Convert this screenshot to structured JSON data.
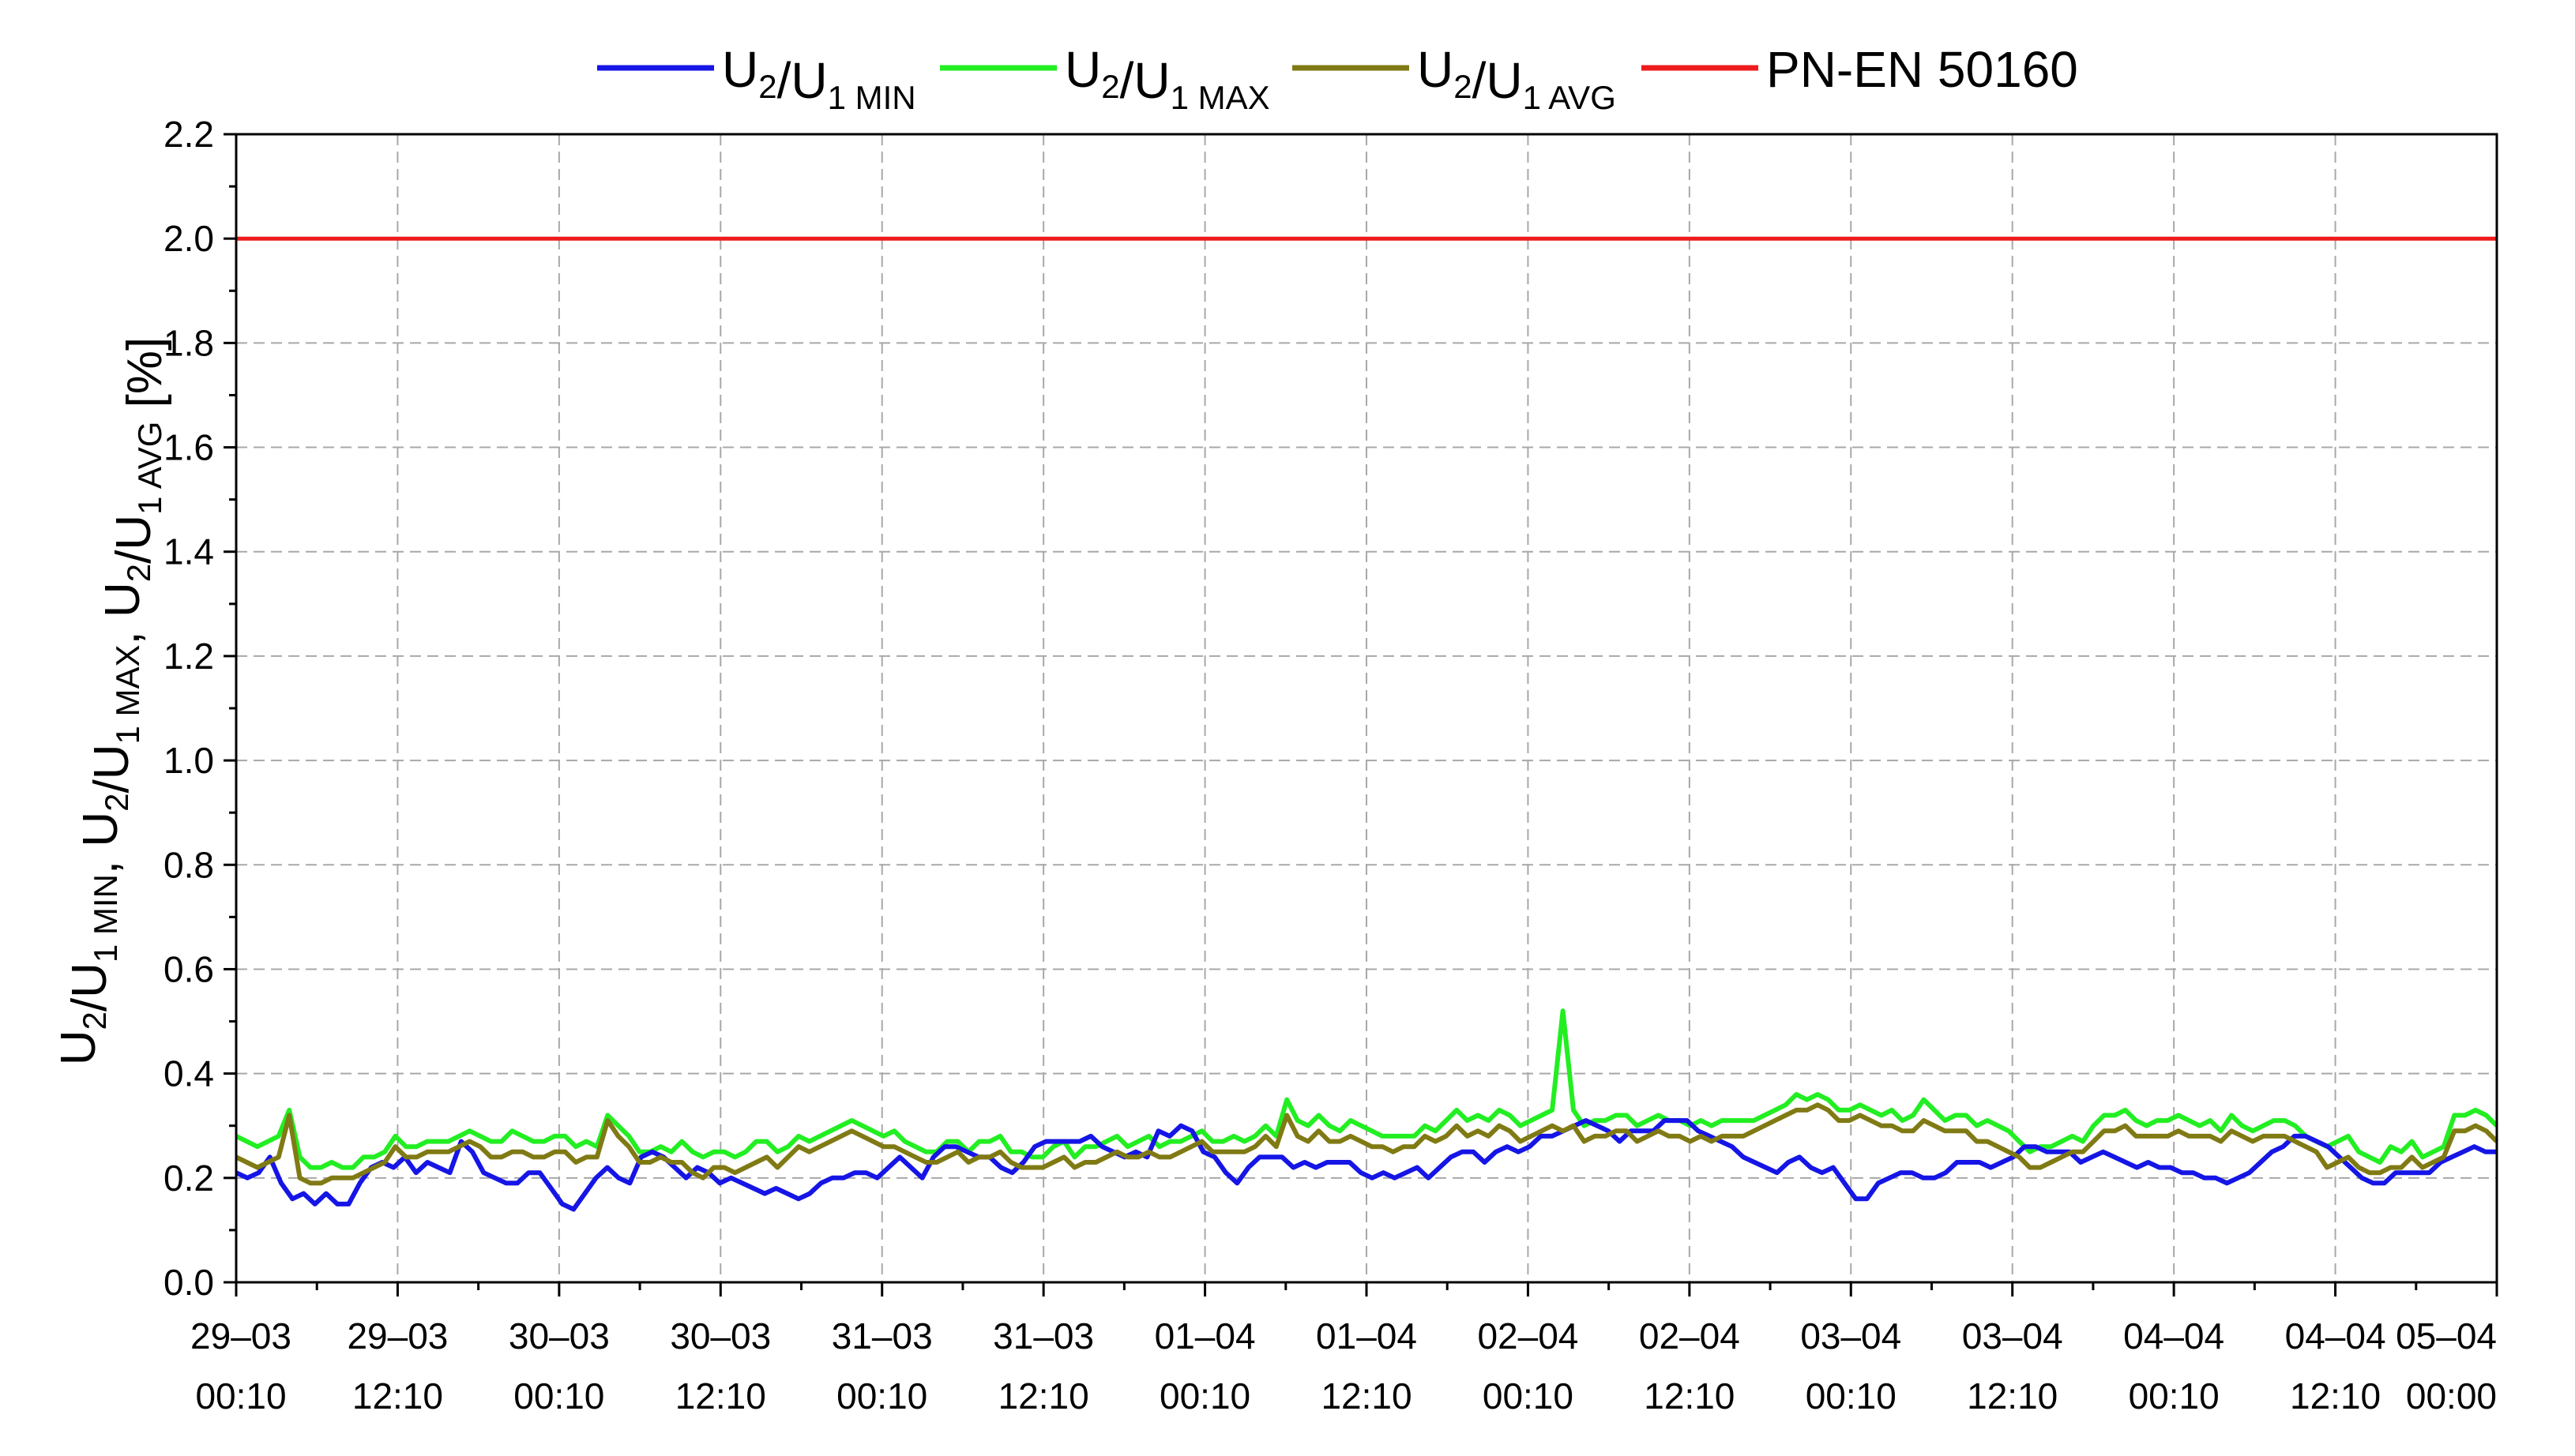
{
  "chart_data": {
    "type": "line",
    "title": "",
    "ylabel": {
      "parts": [
        {
          "t": "U"
        },
        {
          "t": "2",
          "sub": true
        },
        {
          "t": "/U"
        },
        {
          "t": "1 MIN",
          "sub": true
        },
        {
          "t": ", U"
        },
        {
          "t": "2",
          "sub": true
        },
        {
          "t": "/U"
        },
        {
          "t": "1 MAX",
          "sub": true
        },
        {
          "t": ", U"
        },
        {
          "t": "2",
          "sub": true
        },
        {
          "t": "/U"
        },
        {
          "t": "1 AVG",
          "sub": true
        },
        {
          "t": " [%]"
        }
      ]
    },
    "ylim": [
      0,
      2.2
    ],
    "yticks": [
      "0.0",
      "0.2",
      "0.4",
      "0.6",
      "0.8",
      "1.0",
      "1.2",
      "1.4",
      "1.6",
      "1.8",
      "2.0",
      "2.2"
    ],
    "xticks": [
      {
        "date": "29–03",
        "time": "00:10"
      },
      {
        "date": "29–03",
        "time": "12:10"
      },
      {
        "date": "30–03",
        "time": "00:10"
      },
      {
        "date": "30–03",
        "time": "12:10"
      },
      {
        "date": "31–03",
        "time": "00:10"
      },
      {
        "date": "31–03",
        "time": "12:10"
      },
      {
        "date": "01–04",
        "time": "00:10"
      },
      {
        "date": "01–04",
        "time": "12:10"
      },
      {
        "date": "02–04",
        "time": "00:10"
      },
      {
        "date": "02–04",
        "time": "12:10"
      },
      {
        "date": "03–04",
        "time": "00:10"
      },
      {
        "date": "03–04",
        "time": "12:10"
      },
      {
        "date": "04–04",
        "time": "00:10"
      },
      {
        "date": "04–04",
        "time": "12:10"
      },
      {
        "date": "05–04",
        "time": "00:00"
      }
    ],
    "grid": true,
    "legend": "top",
    "series": [
      {
        "name": "U2/U1 MIN",
        "legend_parts": [
          {
            "t": "U"
          },
          {
            "t": "2",
            "sub": true
          },
          {
            "t": "/U"
          },
          {
            "t": "1 MIN",
            "sub": true
          }
        ],
        "color": "#1515e6",
        "values": [
          0.21,
          0.2,
          0.21,
          0.24,
          0.19,
          0.16,
          0.17,
          0.15,
          0.17,
          0.15,
          0.15,
          0.19,
          0.22,
          0.23,
          0.22,
          0.24,
          0.21,
          0.23,
          0.22,
          0.21,
          0.27,
          0.25,
          0.21,
          0.2,
          0.19,
          0.19,
          0.21,
          0.21,
          0.18,
          0.15,
          0.14,
          0.17,
          0.2,
          0.22,
          0.2,
          0.19,
          0.24,
          0.25,
          0.24,
          0.22,
          0.2,
          0.22,
          0.21,
          0.19,
          0.2,
          0.19,
          0.18,
          0.17,
          0.18,
          0.17,
          0.16,
          0.17,
          0.19,
          0.2,
          0.2,
          0.21,
          0.21,
          0.2,
          0.22,
          0.24,
          0.22,
          0.2,
          0.24,
          0.26,
          0.26,
          0.25,
          0.24,
          0.24,
          0.22,
          0.21,
          0.23,
          0.26,
          0.27,
          0.27,
          0.27,
          0.27,
          0.28,
          0.26,
          0.25,
          0.24,
          0.25,
          0.24,
          0.29,
          0.28,
          0.3,
          0.29,
          0.25,
          0.24,
          0.21,
          0.19,
          0.22,
          0.24,
          0.24,
          0.24,
          0.22,
          0.23,
          0.22,
          0.23,
          0.23,
          0.23,
          0.21,
          0.2,
          0.21,
          0.2,
          0.21,
          0.22,
          0.2,
          0.22,
          0.24,
          0.25,
          0.25,
          0.23,
          0.25,
          0.26,
          0.25,
          0.26,
          0.28,
          0.28,
          0.29,
          0.3,
          0.31,
          0.3,
          0.29,
          0.27,
          0.29,
          0.29,
          0.29,
          0.31,
          0.31,
          0.31,
          0.29,
          0.28,
          0.27,
          0.26,
          0.24,
          0.23,
          0.22,
          0.21,
          0.23,
          0.24,
          0.22,
          0.21,
          0.22,
          0.19,
          0.16,
          0.16,
          0.19,
          0.2,
          0.21,
          0.21,
          0.2,
          0.2,
          0.21,
          0.23,
          0.23,
          0.23,
          0.22,
          0.23,
          0.24,
          0.26,
          0.26,
          0.25,
          0.25,
          0.25,
          0.23,
          0.24,
          0.25,
          0.24,
          0.23,
          0.22,
          0.23,
          0.22,
          0.22,
          0.21,
          0.21,
          0.2,
          0.2,
          0.19,
          0.2,
          0.21,
          0.23,
          0.25,
          0.26,
          0.28,
          0.28,
          0.27,
          0.26,
          0.24,
          0.22,
          0.2,
          0.19,
          0.19,
          0.21,
          0.21,
          0.21,
          0.21,
          0.23,
          0.24,
          0.25,
          0.26,
          0.25,
          0.25
        ]
      },
      {
        "name": "U2/U1 MAX",
        "legend_parts": [
          {
            "t": "U"
          },
          {
            "t": "2",
            "sub": true
          },
          {
            "t": "/U"
          },
          {
            "t": "1 MAX",
            "sub": true
          }
        ],
        "color": "#22ee22",
        "values": [
          0.28,
          0.27,
          0.26,
          0.27,
          0.28,
          0.33,
          0.24,
          0.22,
          0.22,
          0.23,
          0.22,
          0.22,
          0.24,
          0.24,
          0.25,
          0.28,
          0.26,
          0.26,
          0.27,
          0.27,
          0.27,
          0.28,
          0.29,
          0.28,
          0.27,
          0.27,
          0.29,
          0.28,
          0.27,
          0.27,
          0.28,
          0.28,
          0.26,
          0.27,
          0.26,
          0.32,
          0.3,
          0.28,
          0.25,
          0.25,
          0.26,
          0.25,
          0.27,
          0.25,
          0.24,
          0.25,
          0.25,
          0.24,
          0.25,
          0.27,
          0.27,
          0.25,
          0.26,
          0.28,
          0.27,
          0.28,
          0.29,
          0.3,
          0.31,
          0.3,
          0.29,
          0.28,
          0.29,
          0.27,
          0.26,
          0.25,
          0.25,
          0.27,
          0.27,
          0.25,
          0.27,
          0.27,
          0.28,
          0.25,
          0.25,
          0.24,
          0.24,
          0.26,
          0.27,
          0.24,
          0.26,
          0.26,
          0.27,
          0.28,
          0.26,
          0.27,
          0.28,
          0.26,
          0.27,
          0.27,
          0.28,
          0.29,
          0.27,
          0.27,
          0.28,
          0.27,
          0.28,
          0.3,
          0.28,
          0.35,
          0.31,
          0.3,
          0.32,
          0.3,
          0.29,
          0.31,
          0.3,
          0.29,
          0.28,
          0.28,
          0.28,
          0.28,
          0.3,
          0.29,
          0.31,
          0.33,
          0.31,
          0.32,
          0.31,
          0.33,
          0.32,
          0.3,
          0.31,
          0.32,
          0.33,
          0.52,
          0.33,
          0.3,
          0.31,
          0.31,
          0.32,
          0.32,
          0.3,
          0.31,
          0.32,
          0.31,
          0.31,
          0.3,
          0.31,
          0.3,
          0.31,
          0.31,
          0.31,
          0.31,
          0.32,
          0.33,
          0.34,
          0.36,
          0.35,
          0.36,
          0.35,
          0.33,
          0.33,
          0.34,
          0.33,
          0.32,
          0.33,
          0.31,
          0.32,
          0.35,
          0.33,
          0.31,
          0.32,
          0.32,
          0.3,
          0.31,
          0.3,
          0.29,
          0.27,
          0.25,
          0.26,
          0.26,
          0.27,
          0.28,
          0.27,
          0.3,
          0.32,
          0.32,
          0.33,
          0.31,
          0.3,
          0.31,
          0.31,
          0.32,
          0.31,
          0.3,
          0.31,
          0.29,
          0.32,
          0.3,
          0.29,
          0.3,
          0.31,
          0.31,
          0.3,
          0.28,
          0.27,
          0.26,
          0.27,
          0.28,
          0.25,
          0.24,
          0.23,
          0.26,
          0.25,
          0.27,
          0.24,
          0.25,
          0.26,
          0.32,
          0.32,
          0.33,
          0.32,
          0.3
        ]
      },
      {
        "name": "U2/U1 AVG",
        "legend_parts": [
          {
            "t": "U"
          },
          {
            "t": "2",
            "sub": true
          },
          {
            "t": "/U"
          },
          {
            "t": "1 AVG",
            "sub": true
          }
        ],
        "color": "#807a14",
        "values": [
          0.24,
          0.23,
          0.22,
          0.23,
          0.24,
          0.32,
          0.2,
          0.19,
          0.19,
          0.2,
          0.2,
          0.2,
          0.21,
          0.22,
          0.23,
          0.26,
          0.24,
          0.24,
          0.25,
          0.25,
          0.25,
          0.26,
          0.27,
          0.26,
          0.24,
          0.24,
          0.25,
          0.25,
          0.24,
          0.24,
          0.25,
          0.25,
          0.23,
          0.24,
          0.24,
          0.31,
          0.28,
          0.26,
          0.23,
          0.23,
          0.24,
          0.23,
          0.23,
          0.21,
          0.2,
          0.22,
          0.22,
          0.21,
          0.22,
          0.23,
          0.24,
          0.22,
          0.24,
          0.26,
          0.25,
          0.26,
          0.27,
          0.28,
          0.29,
          0.28,
          0.27,
          0.26,
          0.26,
          0.25,
          0.24,
          0.23,
          0.23,
          0.24,
          0.25,
          0.23,
          0.24,
          0.24,
          0.25,
          0.23,
          0.22,
          0.22,
          0.22,
          0.23,
          0.24,
          0.22,
          0.23,
          0.23,
          0.24,
          0.25,
          0.24,
          0.24,
          0.25,
          0.24,
          0.24,
          0.25,
          0.26,
          0.27,
          0.25,
          0.25,
          0.25,
          0.25,
          0.26,
          0.28,
          0.26,
          0.32,
          0.28,
          0.27,
          0.29,
          0.27,
          0.27,
          0.28,
          0.27,
          0.26,
          0.26,
          0.25,
          0.26,
          0.26,
          0.28,
          0.27,
          0.28,
          0.3,
          0.28,
          0.29,
          0.28,
          0.3,
          0.29,
          0.27,
          0.28,
          0.29,
          0.3,
          0.29,
          0.3,
          0.27,
          0.28,
          0.28,
          0.29,
          0.29,
          0.27,
          0.28,
          0.29,
          0.28,
          0.28,
          0.27,
          0.28,
          0.27,
          0.28,
          0.28,
          0.28,
          0.29,
          0.3,
          0.31,
          0.32,
          0.33,
          0.33,
          0.34,
          0.33,
          0.31,
          0.31,
          0.32,
          0.31,
          0.3,
          0.3,
          0.29,
          0.29,
          0.31,
          0.3,
          0.29,
          0.29,
          0.29,
          0.27,
          0.27,
          0.26,
          0.25,
          0.24,
          0.22,
          0.22,
          0.23,
          0.24,
          0.25,
          0.25,
          0.27,
          0.29,
          0.29,
          0.3,
          0.28,
          0.28,
          0.28,
          0.28,
          0.29,
          0.28,
          0.28,
          0.28,
          0.27,
          0.29,
          0.28,
          0.27,
          0.28,
          0.28,
          0.28,
          0.27,
          0.26,
          0.25,
          0.22,
          0.23,
          0.24,
          0.22,
          0.21,
          0.21,
          0.22,
          0.22,
          0.24,
          0.22,
          0.23,
          0.24,
          0.29,
          0.29,
          0.3,
          0.29,
          0.27
        ]
      },
      {
        "name": "PN-EN 50160",
        "legend_parts": [
          {
            "t": "PN-EN 50160"
          }
        ],
        "color": "#ee1c1c",
        "values": [
          2.0,
          2.0
        ]
      }
    ]
  }
}
